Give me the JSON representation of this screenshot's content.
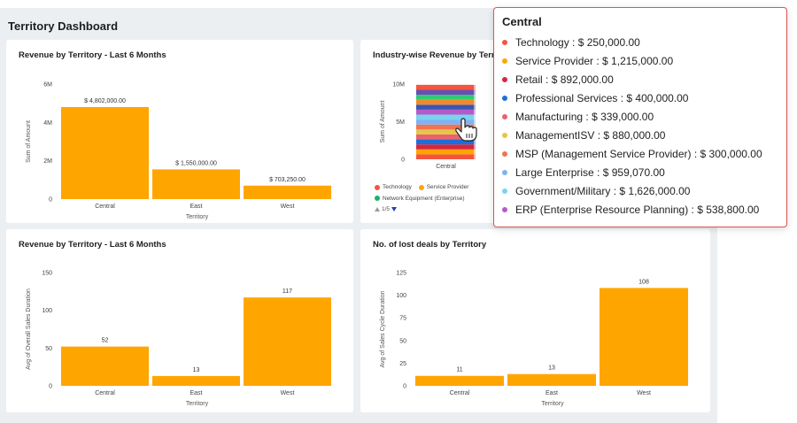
{
  "dashboard": {
    "title": "Territory Dashboard"
  },
  "charts": [
    {
      "title": "Revenue by Territory - Last 6 Months",
      "chart_data": {
        "type": "bar",
        "categories": [
          "Central",
          "East",
          "West"
        ],
        "values": [
          4802000,
          1550000,
          703250
        ],
        "data_labels": [
          "$ 4,802,000.00",
          "$ 1,550,000.00",
          "$ 703,250.00"
        ],
        "yticks": [
          "0",
          "2M",
          "4M",
          "6M"
        ],
        "ylim": [
          0,
          6000000
        ],
        "xlabel": "Territory",
        "ylabel": "Sum of Amount",
        "color": "#FFA500"
      }
    },
    {
      "title": "Industry-wise Revenue by Territ",
      "chart_data": {
        "type": "bar",
        "stacked": true,
        "categories": [
          "Central"
        ],
        "yticks": [
          "0",
          "5M",
          "10M"
        ],
        "ylim": [
          0,
          10000000
        ],
        "xlabel": "",
        "ylabel": "Sum of Amount",
        "legend": [
          "Technology",
          "Service Provider",
          "Network Equipment (Enterprise)"
        ],
        "pager": "1/5"
      }
    },
    {
      "title": "Revenue by Territory - Last 6 Months",
      "chart_data": {
        "type": "bar",
        "categories": [
          "Central",
          "East",
          "West"
        ],
        "values": [
          52,
          13,
          117
        ],
        "data_labels": [
          "52",
          "13",
          "117"
        ],
        "yticks": [
          "0",
          "50",
          "100",
          "150"
        ],
        "ylim": [
          0,
          150
        ],
        "xlabel": "Territory",
        "ylabel": "Avg of Overall Sales Duration",
        "color": "#FFA500"
      }
    },
    {
      "title": "No. of lost deals by Territory",
      "chart_data": {
        "type": "bar",
        "categories": [
          "Central",
          "East",
          "West"
        ],
        "values": [
          11,
          13,
          108
        ],
        "data_labels": [
          "11",
          "13",
          "108"
        ],
        "yticks": [
          "0",
          "25",
          "50",
          "75",
          "100",
          "125"
        ],
        "ylim": [
          0,
          125
        ],
        "xlabel": "Territory",
        "ylabel": "Avg of Sales Cycle Duration",
        "color": "#FFA500"
      }
    }
  ],
  "stack_series": [
    {
      "name": "Technology",
      "value": 250000,
      "color": "#F4553E"
    },
    {
      "name": "Service Provider",
      "value": 1215000,
      "color": "#FFA500"
    },
    {
      "name": "Retail",
      "value": 892000,
      "color": "#D7263D"
    },
    {
      "name": "Professional Services",
      "value": 400000,
      "color": "#1C6FD9"
    },
    {
      "name": "Manufacturing",
      "value": 339000,
      "color": "#E8626F"
    },
    {
      "name": "ManagementISV",
      "value": 880000,
      "color": "#E6C54A"
    },
    {
      "name": "MSP (Management Service Provider)",
      "value": 300000,
      "color": "#F2734E"
    },
    {
      "name": "Large Enterprise",
      "value": 959070,
      "color": "#7FB2F0"
    },
    {
      "name": "Government/Military",
      "value": 1626000,
      "color": "#7AD3F0"
    },
    {
      "name": "ERP (Enterprise Resource Planning)",
      "value": 538800,
      "color": "#B35BC8"
    }
  ],
  "stack_extra_colors": [
    "#3A55B4",
    "#F08A2C",
    "#2ECC71",
    "#6A4FB3"
  ],
  "legend_colors": [
    "#F4553E",
    "#FFA500",
    "#1DB06A"
  ],
  "tooltip": {
    "title": "Central",
    "rows": [
      {
        "name": "Technology",
        "value": "$ 250,000.00",
        "color": "#F4553E"
      },
      {
        "name": "Service Provider",
        "value": "$ 1,215,000.00",
        "color": "#FFA500"
      },
      {
        "name": "Retail",
        "value": "$ 892,000.00",
        "color": "#D7263D"
      },
      {
        "name": "Professional Services",
        "value": "$ 400,000.00",
        "color": "#1C6FD9"
      },
      {
        "name": "Manufacturing",
        "value": "$ 339,000.00",
        "color": "#E8626F"
      },
      {
        "name": "ManagementISV",
        "value": "$ 880,000.00",
        "color": "#E6C54A"
      },
      {
        "name": "MSP (Management Service Provider)",
        "value": "$ 300,000.00",
        "color": "#F2734E"
      },
      {
        "name": "Large Enterprise",
        "value": "$ 959,070.00",
        "color": "#7FB2F0"
      },
      {
        "name": "Government/Military",
        "value": "$ 1,626,000.00",
        "color": "#7AD3F0"
      },
      {
        "name": "ERP (Enterprise Resource Planning)",
        "value": "$ 538,800.00",
        "color": "#B35BC8"
      }
    ]
  }
}
